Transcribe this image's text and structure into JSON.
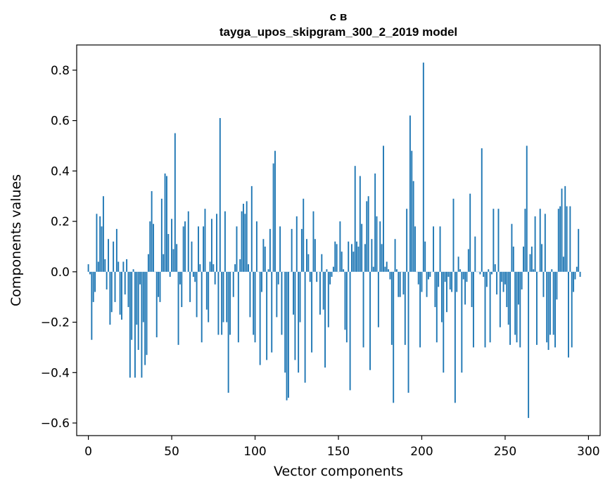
{
  "chart_data": {
    "type": "bar",
    "title_line1": "с в",
    "title_line2": "tayga_upos_skipgram_300_2_2019 model",
    "xlabel": "Vector components",
    "ylabel": "Components values",
    "xlim": [
      -7,
      307
    ],
    "ylim": [
      -0.65,
      0.9
    ],
    "xticks": [
      0,
      50,
      100,
      150,
      200,
      250,
      300
    ],
    "xtick_labels": [
      "0",
      "50",
      "100",
      "150",
      "200",
      "250",
      "300"
    ],
    "yticks": [
      -0.6,
      -0.4,
      -0.2,
      0.0,
      0.2,
      0.4,
      0.6,
      0.8
    ],
    "ytick_labels": [
      "−0.6",
      "−0.4",
      "−0.2",
      "0.0",
      "0.2",
      "0.4",
      "0.6",
      "0.8"
    ],
    "bar_color": "#1f77b4",
    "grid": false,
    "values": [
      0.03,
      -0.01,
      -0.27,
      -0.12,
      -0.08,
      0.23,
      0.04,
      0.22,
      0.18,
      0.3,
      0.05,
      -0.07,
      0.13,
      -0.21,
      -0.16,
      0.12,
      -0.12,
      0.17,
      0.04,
      -0.17,
      -0.19,
      0.04,
      -0.09,
      0.05,
      -0.14,
      -0.42,
      -0.27,
      0.01,
      -0.42,
      -0.21,
      -0.31,
      -0.05,
      -0.42,
      -0.2,
      -0.37,
      -0.33,
      0.07,
      0.2,
      0.32,
      0.19,
      0.0,
      -0.26,
      -0.1,
      -0.12,
      0.29,
      0.07,
      0.39,
      0.38,
      0.15,
      -0.02,
      0.21,
      0.09,
      0.55,
      0.11,
      -0.29,
      -0.05,
      -0.14,
      0.18,
      0.2,
      0.0,
      0.24,
      -0.12,
      0.12,
      -0.02,
      -0.04,
      -0.18,
      0.18,
      0.03,
      -0.28,
      0.18,
      0.25,
      -0.15,
      -0.2,
      0.04,
      0.21,
      0.03,
      -0.05,
      0.23,
      -0.25,
      0.61,
      -0.25,
      -0.2,
      0.24,
      -0.2,
      -0.48,
      -0.25,
      0.0,
      -0.1,
      0.03,
      0.18,
      -0.28,
      0.05,
      0.24,
      0.27,
      0.23,
      0.28,
      0.03,
      -0.18,
      0.34,
      -0.25,
      -0.28,
      0.2,
      0.0,
      -0.37,
      -0.08,
      0.13,
      0.1,
      -0.35,
      0.01,
      0.17,
      -0.32,
      0.43,
      0.48,
      -0.18,
      -0.05,
      0.18,
      -0.25,
      0.0,
      -0.4,
      -0.51,
      -0.5,
      0.0,
      0.17,
      -0.17,
      -0.35,
      0.22,
      -0.4,
      -0.2,
      0.17,
      0.29,
      -0.44,
      0.13,
      0.07,
      -0.04,
      -0.32,
      0.24,
      0.13,
      -0.04,
      0.0,
      -0.17,
      0.07,
      -0.15,
      -0.38,
      0.01,
      -0.22,
      -0.05,
      -0.02,
      0.02,
      0.12,
      0.11,
      0.0,
      0.2,
      0.08,
      0.01,
      -0.23,
      -0.28,
      0.12,
      -0.47,
      0.11,
      0.08,
      0.42,
      0.12,
      0.1,
      0.38,
      0.19,
      -0.3,
      0.11,
      0.28,
      0.3,
      -0.39,
      0.13,
      0.02,
      0.39,
      0.22,
      -0.22,
      0.2,
      0.11,
      0.5,
      0.02,
      0.04,
      0.01,
      -0.03,
      -0.29,
      -0.52,
      0.13,
      0.01,
      -0.1,
      -0.1,
      0.0,
      -0.09,
      -0.29,
      0.25,
      -0.48,
      0.62,
      0.48,
      0.36,
      0.18,
      0.0,
      -0.05,
      -0.3,
      -0.08,
      0.83,
      0.12,
      -0.1,
      -0.03,
      -0.02,
      0.0,
      0.18,
      -0.14,
      -0.28,
      -0.06,
      0.18,
      -0.2,
      -0.4,
      -0.04,
      -0.16,
      -0.02,
      -0.07,
      -0.08,
      0.29,
      -0.52,
      -0.08,
      0.06,
      0.01,
      -0.4,
      -0.03,
      -0.13,
      -0.04,
      0.09,
      0.31,
      -0.14,
      -0.3,
      0.14,
      0.0,
      0.0,
      -0.01,
      0.49,
      -0.02,
      -0.3,
      -0.06,
      0.01,
      -0.28,
      -0.01,
      0.25,
      0.03,
      -0.09,
      0.25,
      -0.22,
      -0.04,
      -0.08,
      -0.05,
      -0.14,
      -0.21,
      -0.29,
      0.19,
      0.1,
      -0.25,
      -0.28,
      -0.13,
      -0.3,
      -0.07,
      0.1,
      0.25,
      0.5,
      -0.58,
      0.07,
      0.1,
      0.01,
      0.22,
      -0.29,
      0.0,
      0.25,
      0.11,
      -0.1,
      0.23,
      -0.28,
      -0.31,
      -0.25,
      0.01,
      -0.25,
      -0.3,
      -0.11,
      0.25,
      0.26,
      0.33,
      0.06,
      0.34,
      0.26,
      -0.34,
      0.26,
      -0.3,
      -0.08,
      -0.03,
      0.02,
      0.17,
      -0.02
    ]
  }
}
